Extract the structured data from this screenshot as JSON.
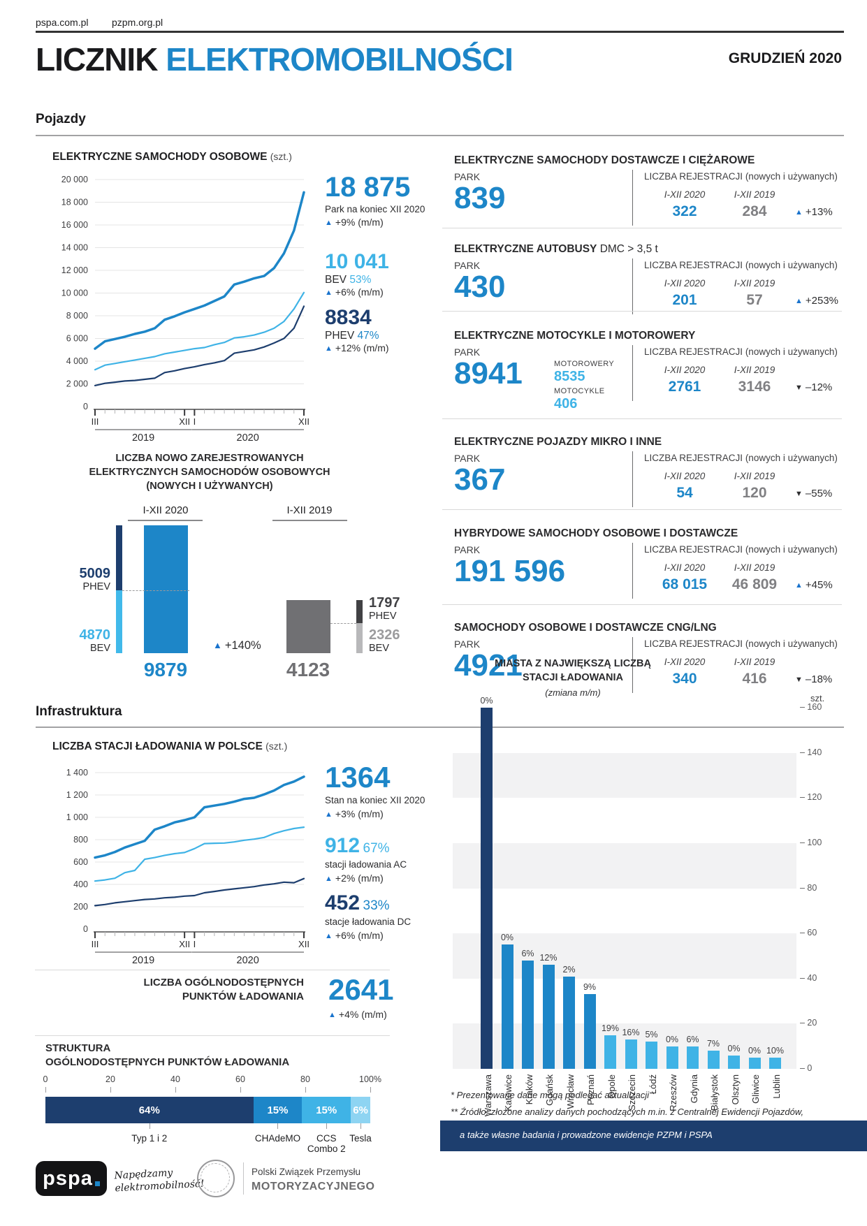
{
  "header": {
    "link1": "pspa.com.pl",
    "link2": "pzpm.org.pl",
    "title_black": "LICZNIK",
    "title_blue": "ELEKTROMOBILNOŚCI",
    "issue": "GRUDZIEŃ 2020"
  },
  "section_vehicles": "Pojazdy",
  "section_infra": "Infrastruktura",
  "glyphs": {
    "up": "▲",
    "down": "▼"
  },
  "colors": {
    "blue": "#1d86c8",
    "light_blue": "#3fb3e6",
    "navy": "#1d3e6e",
    "gray_2019": "#808083"
  },
  "ev": {
    "title": "ELEKTRYCZNE SAMOCHODY OSOBOWE",
    "title_unit": "(szt.)",
    "total": "18 875",
    "total_label": "Park na koniec XII 2020",
    "total_change": "+9% (m/m)",
    "bev": "10 041",
    "bev_label": "BEV",
    "bev_share": "53%",
    "bev_change": "+6% (m/m)",
    "phev": "8834",
    "phev_label": "PHEV",
    "phev_share": "47%",
    "phev_change": "+12% (m/m)"
  },
  "newreg": {
    "title1": "LICZBA NOWO ZAREJESTROWANYCH",
    "title2": "ELEKTRYCZNYCH SAMOCHODÓW OSOBOWYCH",
    "title3": "(NOWYCH I UŻYWANYCH)",
    "group2020": "I-XII 2020",
    "group2019": "I-XII 2019",
    "phev2020": "5009",
    "phev_label": "PHEV",
    "bev2020": "4870",
    "bev_label": "BEV",
    "total2020": "9879",
    "change": "+140%",
    "total2019": "4123",
    "phev2019": "1797",
    "bev2019": "2326"
  },
  "block_labels": {
    "park": "PARK",
    "reg": "LICZBA REJESTRACJI",
    "reg2": "(nowych i używanych)",
    "y2020": "I-XII 2020",
    "y2019": "I-XII 2019"
  },
  "blocks": [
    {
      "title": "ELEKTRYCZNE SAMOCHODY DOSTAWCZE I CIĘŻAROWE",
      "title_suffix": "",
      "park": "839",
      "v2020": "322",
      "v2019": "284",
      "dir": "up",
      "pct": "+13%"
    },
    {
      "title": "ELEKTRYCZNE AUTOBUSY",
      "title_suffix": " DMC > 3,5 t",
      "park": "430",
      "v2020": "201",
      "v2019": "57",
      "dir": "up",
      "pct": "+253%"
    },
    {
      "title": "ELEKTRYCZNE MOTOCYKLE I MOTOROWERY",
      "title_suffix": "",
      "park": "8941",
      "sub1_label": "MOTOROWERY",
      "sub1": "8535",
      "sub2_label": "MOTOCYKLE",
      "sub2": "406",
      "v2020": "2761",
      "v2019": "3146",
      "dir": "down",
      "pct": "–12%"
    },
    {
      "title": "ELEKTRYCZNE POJAZDY MIKRO I INNE",
      "title_suffix": "",
      "park": "367",
      "v2020": "54",
      "v2019": "120",
      "dir": "down",
      "pct": "–55%"
    },
    {
      "title": "HYBRYDOWE SAMOCHODY OSOBOWE I DOSTAWCZE",
      "title_suffix": "",
      "park": "191 596",
      "v2020": "68 015",
      "v2019": "46 809",
      "dir": "up",
      "pct": "+45%"
    },
    {
      "title": "SAMOCHODY OSOBOWE I DOSTAWCZE CNG/LNG",
      "title_suffix": "",
      "park": "4921",
      "v2020": "340",
      "v2019": "416",
      "dir": "down",
      "pct": "–18%"
    }
  ],
  "infra": {
    "title": "LICZBA STACJI ŁADOWANIA W POLSCE",
    "title_unit": "(szt.)",
    "total": "1364",
    "total_label": "Stan na koniec XII 2020",
    "total_change": "+3% (m/m)",
    "ac": "912",
    "ac_share": "67%",
    "ac_label": "stacji ładowania AC",
    "ac_change": "+2% (m/m)",
    "dc": "452",
    "dc_share": "33%",
    "dc_label": "stacje ładowania DC",
    "dc_change": "+6% (m/m)"
  },
  "points": {
    "label1": "LICZBA OGÓLNODOSTĘPNYCH",
    "label2": "PUNKTÓW ŁADOWANIA",
    "value": "2641",
    "change": "+4% (m/m)"
  },
  "structure": {
    "heading1": "STRUKTURA",
    "heading2": "OGÓLNODOSTĘPNYCH PUNKTÓW ŁADOWANIA"
  },
  "cities": {
    "title1": "MIASTA Z NAJWIĘKSZĄ LICZBĄ",
    "title2": "STACJI ŁADOWANIA",
    "subtitle": "(zmiana m/m)",
    "unit": "szt."
  },
  "footnotes": {
    "line1": "* Prezentowane dane mogą podlegać aktualizacji",
    "line2": "** Źródło: złożone analizy danych pochodzących m.in. z Centralnej Ewidencji Pojazdów,",
    "line3": "a także własne badania i prowadzone ewidencje PZPM i PSPA"
  },
  "footer": {
    "pspa": "pspa",
    "tagline1": "Napędzamy",
    "tagline2": "elektromobilność!",
    "pzpm_line1": "Polski Związek Przemysłu",
    "pzpm_line2": "MOTORYZACYJNEGO"
  },
  "chart_data": [
    {
      "type": "line",
      "title": "ELEKTRYCZNE SAMOCHODY OSOBOWE",
      "unit": "szt.",
      "x_range": "III 2019 – XII 2020 (monthly)",
      "series": [
        {
          "name": "Park łącznie (BEV+PHEV)",
          "color": "#1d86c8",
          "values": [
            5100,
            5750,
            5950,
            6150,
            6400,
            6600,
            6900,
            7650,
            7950,
            8300,
            8600,
            8900,
            9300,
            9700,
            10750,
            11000,
            11300,
            11500,
            12200,
            13500,
            15500,
            18875
          ]
        },
        {
          "name": "BEV",
          "color": "#3fb3e6",
          "values": [
            3250,
            3650,
            3800,
            3950,
            4100,
            4250,
            4400,
            4650,
            4800,
            4950,
            5100,
            5200,
            5450,
            5650,
            6050,
            6150,
            6300,
            6550,
            6900,
            7500,
            8600,
            10041
          ]
        },
        {
          "name": "PHEV",
          "color": "#1d3e6e",
          "values": [
            1850,
            2050,
            2150,
            2250,
            2300,
            2400,
            2500,
            3000,
            3150,
            3350,
            3500,
            3700,
            3850,
            4050,
            4700,
            4850,
            5000,
            5250,
            5600,
            6000,
            6900,
            8834
          ]
        }
      ],
      "ylim": [
        0,
        20000
      ],
      "ystep": 2000,
      "x_axis_labels": [
        "III",
        "XII",
        "I",
        "XII"
      ],
      "year_labels": [
        "2019",
        "2020"
      ]
    },
    {
      "type": "bar",
      "title": "LICZBA NOWO ZAREJESTROWANYCH ELEKTRYCZNYCH SAMOCHODÓW OSOBOWYCH (NOWYCH I UŻYWANYCH)",
      "groups": [
        {
          "label": "I-XII 2020",
          "total": 9879,
          "phev": 5009,
          "bev": 4870
        },
        {
          "label": "I-XII 2019",
          "total": 4123,
          "phev": 1797,
          "bev": 2326
        }
      ],
      "change": "+140%"
    },
    {
      "type": "line",
      "title": "LICZBA STACJI ŁADOWANIA W POLSCE",
      "unit": "szt.",
      "x_range": "III 2019 – XII 2020 (monthly)",
      "series": [
        {
          "name": "Stacje łącznie",
          "color": "#1d86c8",
          "values": [
            640,
            660,
            690,
            730,
            760,
            790,
            890,
            920,
            955,
            975,
            1000,
            1090,
            1105,
            1120,
            1140,
            1165,
            1175,
            1205,
            1240,
            1290,
            1320,
            1364
          ]
        },
        {
          "name": "AC",
          "color": "#3fb3e6",
          "values": [
            430,
            440,
            455,
            505,
            525,
            625,
            640,
            660,
            675,
            685,
            720,
            765,
            768,
            770,
            780,
            795,
            805,
            820,
            855,
            880,
            900,
            912
          ]
        },
        {
          "name": "DC",
          "color": "#1d3e6e",
          "values": [
            210,
            220,
            235,
            245,
            255,
            265,
            270,
            280,
            285,
            295,
            300,
            325,
            337,
            350,
            360,
            370,
            380,
            395,
            405,
            420,
            415,
            452
          ]
        }
      ],
      "ylim": [
        0,
        1400
      ],
      "ystep": 200,
      "x_axis_labels": [
        "III",
        "XII",
        "I",
        "XII"
      ],
      "year_labels": [
        "2019",
        "2020"
      ]
    },
    {
      "type": "bar",
      "title": "STRUKTURA OGÓLNODOSTĘPNYCH PUNKTÓW ŁADOWANIA",
      "orientation": "horizontal-stacked",
      "segments": [
        {
          "label": "Typ 1 i 2",
          "pct": 64,
          "color": "#1d3e6e"
        },
        {
          "label": "CHAdeMO",
          "pct": 15,
          "color": "#1d86c8"
        },
        {
          "label": "CCS\nCombo 2",
          "pct": 15,
          "color": "#3fb3e6"
        },
        {
          "label": "Tesla",
          "pct": 6,
          "color": "#8ed4f2"
        }
      ],
      "axis": [
        "0",
        "20",
        "40",
        "60",
        "80",
        "100%"
      ]
    },
    {
      "type": "bar",
      "title": "MIASTA Z NAJWIĘKSZĄ LICZBĄ STACJI ŁADOWANIA",
      "subtitle": "(zmiana m/m)",
      "ylabel": "szt.",
      "categories": [
        "Warszawa",
        "Katowice",
        "Kraków",
        "Gdańsk",
        "Wrocław",
        "Poznań",
        "Opole",
        "Szczecin",
        "Łódź",
        "Rzeszów",
        "Gdynia",
        "Białystok",
        "Olsztyn",
        "Gliwice",
        "Lublin"
      ],
      "values": [
        160,
        55,
        48,
        46,
        41,
        33,
        15,
        13,
        12,
        10,
        10,
        8,
        6,
        5,
        5
      ],
      "labels": [
        "0%",
        "0%",
        "6%",
        "12%",
        "2%",
        "9%",
        "19%",
        "16%",
        "5%",
        "0%",
        "6%",
        "7%",
        "0%",
        "0%",
        "10%"
      ],
      "colors": [
        "#1d3e6e",
        "#1d86c8",
        "#1d86c8",
        "#1d86c8",
        "#1d86c8",
        "#1d86c8",
        "#3fb3e6",
        "#3fb3e6",
        "#3fb3e6",
        "#3fb3e6",
        "#3fb3e6",
        "#3fb3e6",
        "#3fb3e6",
        "#3fb3e6",
        "#3fb3e6"
      ],
      "ylim": [
        0,
        160
      ],
      "ystep": 20
    }
  ]
}
